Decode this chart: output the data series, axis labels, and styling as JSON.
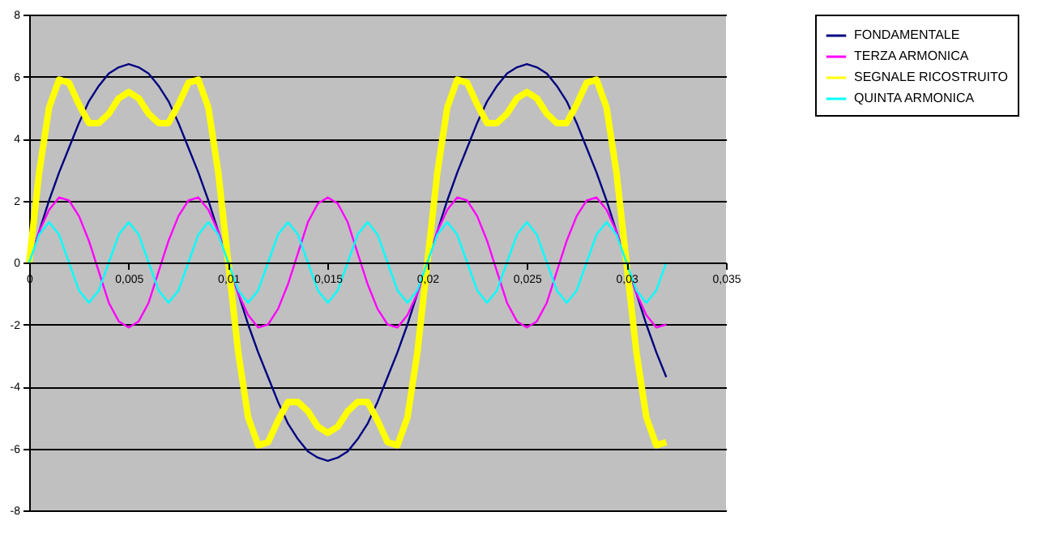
{
  "chart_data": {
    "type": "line",
    "x": [
      0,
      0.0005,
      0.001,
      0.0015,
      0.002,
      0.0025,
      0.003,
      0.0035,
      0.004,
      0.0045,
      0.005,
      0.0055,
      0.006,
      0.0065,
      0.007,
      0.0075,
      0.008,
      0.0085,
      0.009,
      0.0095,
      0.01,
      0.0105,
      0.011,
      0.0115,
      0.012,
      0.0125,
      0.013,
      0.0135,
      0.014,
      0.0145,
      0.015,
      0.0155,
      0.016,
      0.0165,
      0.017,
      0.0175,
      0.018,
      0.0185,
      0.019,
      0.0195,
      0.02,
      0.0205,
      0.021,
      0.0215,
      0.022,
      0.0225,
      0.023,
      0.0235,
      0.024,
      0.0245,
      0.025,
      0.0255,
      0.026,
      0.0265,
      0.027,
      0.0275,
      0.028,
      0.0285,
      0.029,
      0.0295,
      0.03,
      0.0305,
      0.031,
      0.0315,
      0.032
    ],
    "series": [
      {
        "name": "FONDAMENTALE",
        "color": "#000080",
        "values": [
          0,
          1.0,
          2.0,
          2.9,
          3.7,
          4.5,
          5.2,
          5.7,
          6.1,
          6.3,
          6.4,
          6.3,
          6.1,
          5.7,
          5.2,
          4.5,
          3.7,
          2.9,
          2.0,
          1.0,
          0,
          -1.0,
          -2.0,
          -2.9,
          -3.7,
          -4.5,
          -5.2,
          -5.7,
          -6.1,
          -6.3,
          -6.4,
          -6.3,
          -6.1,
          -5.7,
          -5.2,
          -4.5,
          -3.7,
          -2.9,
          -2.0,
          -1.0,
          0,
          1.0,
          2.0,
          2.9,
          3.7,
          4.5,
          5.2,
          5.7,
          6.1,
          6.3,
          6.4,
          6.3,
          6.1,
          5.7,
          5.2,
          4.5,
          3.7,
          2.9,
          2.0,
          1.0,
          0,
          -1.0,
          -2.0,
          -2.9,
          -3.7
        ]
      },
      {
        "name": "TERZA ARMONICA",
        "color": "#ff00ff",
        "values": [
          0,
          1.0,
          1.7,
          2.1,
          2.0,
          1.5,
          0.7,
          -0.3,
          -1.3,
          -1.9,
          -2.1,
          -1.9,
          -1.3,
          -0.3,
          0.7,
          1.5,
          2.0,
          2.1,
          1.7,
          1.0,
          0,
          -1.0,
          -1.7,
          -2.1,
          -2.0,
          -1.5,
          -0.7,
          0.3,
          1.3,
          1.9,
          2.1,
          1.9,
          1.3,
          0.3,
          -0.7,
          -1.5,
          -2.0,
          -2.1,
          -1.7,
          -1.0,
          0,
          1.0,
          1.7,
          2.1,
          2.0,
          1.5,
          0.7,
          -0.3,
          -1.3,
          -1.9,
          -2.1,
          -1.9,
          -1.3,
          -0.3,
          0.7,
          1.5,
          2.0,
          2.1,
          1.7,
          1.0,
          0,
          -1.0,
          -1.7,
          -2.1,
          -2.0
        ]
      },
      {
        "name": "SEGNALE RICOSTRUITO",
        "color": "#ffff00",
        "values": [
          0,
          2.9,
          5.0,
          5.9,
          5.8,
          5.1,
          4.5,
          4.5,
          4.8,
          5.3,
          5.5,
          5.3,
          4.8,
          4.5,
          4.5,
          5.1,
          5.8,
          5.9,
          5.0,
          2.9,
          0,
          -2.9,
          -5.0,
          -5.9,
          -5.8,
          -5.1,
          -4.5,
          -4.5,
          -4.8,
          -5.3,
          -5.5,
          -5.3,
          -4.8,
          -4.5,
          -4.5,
          -5.1,
          -5.8,
          -5.9,
          -5.0,
          -2.9,
          0,
          2.9,
          5.0,
          5.9,
          5.8,
          5.1,
          4.5,
          4.5,
          4.8,
          5.3,
          5.5,
          5.3,
          4.8,
          4.5,
          4.5,
          5.1,
          5.8,
          5.9,
          5.0,
          2.9,
          0,
          -2.9,
          -5.0,
          -5.9,
          -5.8
        ]
      },
      {
        "name": "QUINTA ARMONICA",
        "color": "#00ffff",
        "values": [
          0,
          0.9,
          1.3,
          0.9,
          0,
          -0.9,
          -1.3,
          -0.9,
          0,
          0.9,
          1.3,
          0.9,
          0,
          -0.9,
          -1.3,
          -0.9,
          0,
          0.9,
          1.3,
          0.9,
          0,
          -0.9,
          -1.3,
          -0.9,
          0,
          0.9,
          1.3,
          0.9,
          0,
          -0.9,
          -1.3,
          -0.9,
          0,
          0.9,
          1.3,
          0.9,
          0,
          -0.9,
          -1.3,
          -0.9,
          0,
          0.9,
          1.3,
          0.9,
          0,
          -0.9,
          -1.3,
          -0.9,
          0,
          0.9,
          1.3,
          0.9,
          0,
          -0.9,
          -1.3,
          -0.9,
          0,
          0.9,
          1.3,
          0.9,
          0,
          -0.9,
          -1.3,
          -0.9,
          0
        ]
      }
    ],
    "xlim": [
      0,
      0.035
    ],
    "xticks": [
      0,
      {
        "value": 0.005,
        "label": "0,005"
      },
      {
        "value": 0.01,
        "label": "0,01"
      },
      {
        "value": 0.015,
        "label": "0,015"
      },
      {
        "value": 0.02,
        "label": "0,02"
      },
      {
        "value": 0.025,
        "label": "0,025"
      },
      {
        "value": 0.03,
        "label": "0,03"
      },
      {
        "value": 0.035,
        "label": "0,035"
      }
    ],
    "ylim": [
      -8,
      8
    ],
    "yticks": [
      -8,
      -6,
      -4,
      -2,
      0,
      2,
      4,
      6,
      8
    ],
    "grid": "y",
    "legend": "right",
    "marker": "none",
    "line_style": "solid"
  }
}
